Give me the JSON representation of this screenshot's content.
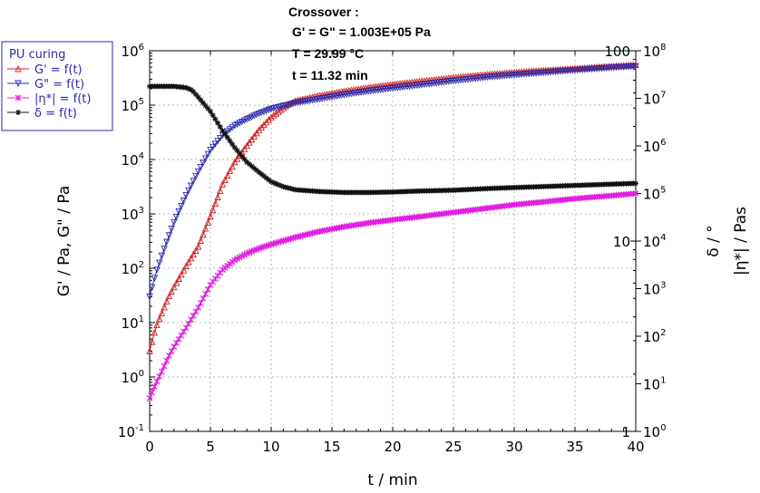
{
  "chart_data": {
    "type": "line",
    "x_label": "t / min",
    "y_left_label": "G' / Pa, G\" / Pa",
    "y_right_label_delta": "δ / °",
    "y_right_label_eta": "|η*| / Pas",
    "x_range": [
      0,
      40
    ],
    "x_ticks": [
      "0",
      "5",
      "10",
      "15",
      "20",
      "25",
      "30",
      "35",
      "40"
    ],
    "y_left_range_log10": [
      -1,
      6
    ],
    "y_left_ticks": [
      {
        "base": "10",
        "exp": "-1"
      },
      {
        "base": "10",
        "exp": "0"
      },
      {
        "base": "10",
        "exp": "1"
      },
      {
        "base": "10",
        "exp": "2"
      },
      {
        "base": "10",
        "exp": "3"
      },
      {
        "base": "10",
        "exp": "4"
      },
      {
        "base": "10",
        "exp": "5"
      },
      {
        "base": "10",
        "exp": "6"
      }
    ],
    "y_delta_range_log10": [
      0,
      2
    ],
    "y_delta_ticks": [
      "1",
      "10",
      "100"
    ],
    "y_eta_range_log10": [
      0,
      8
    ],
    "y_eta_ticks": [
      {
        "base": "10",
        "exp": "0"
      },
      {
        "base": "10",
        "exp": "1"
      },
      {
        "base": "10",
        "exp": "2"
      },
      {
        "base": "10",
        "exp": "3"
      },
      {
        "base": "10",
        "exp": "4"
      },
      {
        "base": "10",
        "exp": "5"
      },
      {
        "base": "10",
        "exp": "6"
      },
      {
        "base": "10",
        "exp": "7"
      },
      {
        "base": "10",
        "exp": "8"
      }
    ],
    "grid": true,
    "legend_position": "top-left outside",
    "legend": {
      "title": "PU curing",
      "entries": [
        {
          "label": "G' = f(t)",
          "color": "#cc2222"
        },
        {
          "label": "G\" = f(t)",
          "color": "#2a2aaa"
        },
        {
          "label": "|η*| = f(t)",
          "color": "#e020e0"
        },
        {
          "label": "δ = f(t)",
          "color": "#111111"
        }
      ]
    },
    "annotation": {
      "title": "Crossover :",
      "lines": [
        "G' = G\" = 1.003E+05 Pa",
        "T = 29.99 °C",
        "t = 11.32 min"
      ]
    },
    "series": [
      {
        "name": "G'",
        "axis": "left",
        "color": "#cc2222",
        "marker": "triangle-up",
        "x": [
          0,
          0.5,
          1,
          1.5,
          2,
          3,
          4,
          5,
          6,
          7,
          8,
          9,
          10,
          11.32,
          12,
          14,
          16,
          18,
          20,
          22,
          25,
          28,
          30,
          32,
          35,
          38,
          40
        ],
        "y": [
          3,
          8,
          15,
          28,
          45,
          110,
          250,
          900,
          3500,
          9000,
          18000,
          35000,
          60000,
          100300,
          120000,
          150000,
          180000,
          210000,
          240000,
          270000,
          320000,
          370000,
          400000,
          430000,
          470000,
          520000,
          550000
        ]
      },
      {
        "name": "G\"",
        "axis": "left",
        "color": "#2a2aaa",
        "marker": "triangle-down",
        "x": [
          0,
          0.5,
          1,
          1.5,
          2,
          3,
          4,
          5,
          6,
          7,
          8,
          9,
          10,
          11.32,
          12,
          14,
          16,
          18,
          20,
          22,
          25,
          28,
          30,
          32,
          35,
          38,
          40
        ],
        "y": [
          30,
          80,
          170,
          350,
          700,
          2200,
          6000,
          15000,
          28000,
          42000,
          55000,
          70000,
          85000,
          100300,
          110000,
          130000,
          155000,
          180000,
          205000,
          230000,
          280000,
          330000,
          360000,
          390000,
          440000,
          490000,
          520000
        ]
      },
      {
        "name": "|η*|",
        "axis": "eta",
        "color": "#e020e0",
        "marker": "x",
        "x": [
          0,
          0.5,
          1,
          1.5,
          2,
          3,
          4,
          5,
          6,
          7,
          8,
          9,
          10,
          12,
          14,
          16,
          18,
          20,
          22,
          25,
          28,
          30,
          32,
          35,
          38,
          40
        ],
        "y": [
          5,
          10,
          18,
          35,
          60,
          150,
          400,
          1200,
          2500,
          4000,
          5500,
          7000,
          8500,
          12000,
          16000,
          20000,
          24000,
          28000,
          32000,
          40000,
          50000,
          58000,
          65000,
          78000,
          90000,
          100000
        ]
      },
      {
        "name": "δ",
        "axis": "delta",
        "color": "#111111",
        "marker": "star",
        "x": [
          0,
          1,
          2,
          3,
          3.5,
          4,
          5,
          6,
          7,
          8,
          9,
          10,
          11,
          12,
          14,
          16,
          18,
          20,
          22,
          25,
          28,
          30,
          32,
          35,
          38,
          40
        ],
        "y": [
          65,
          65,
          65,
          64,
          62,
          57,
          48,
          38,
          31,
          26,
          23,
          20.5,
          19.3,
          18.6,
          18.2,
          18.0,
          18.0,
          18.1,
          18.3,
          18.5,
          18.9,
          19.1,
          19.3,
          19.6,
          19.9,
          20.1
        ]
      }
    ]
  }
}
